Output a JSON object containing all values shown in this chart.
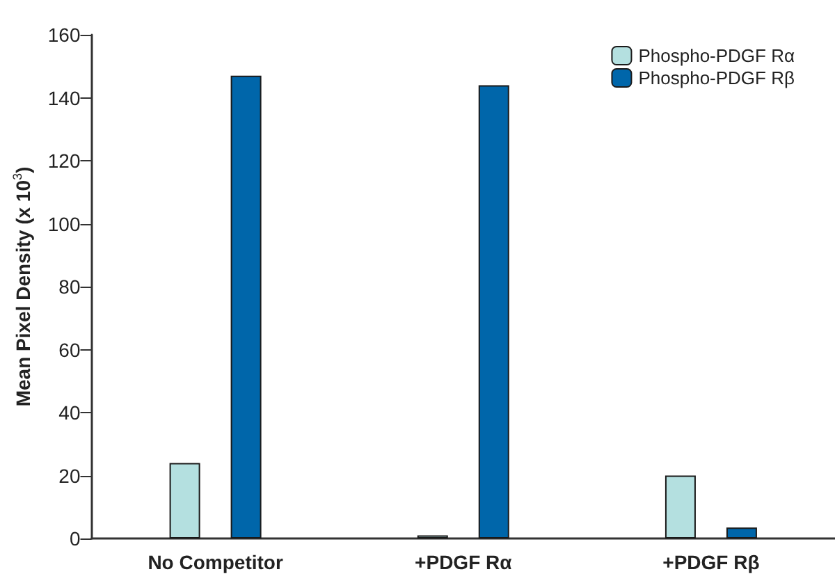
{
  "chart_data": {
    "type": "bar",
    "ylabel": "Mean Pixel Density (x 10$^{3}$)",
    "categories": [
      "No Competitor",
      "+PDGF Rα",
      "+PDGF Rβ"
    ],
    "series": [
      {
        "name": "Phospho-PDGF Rα",
        "color": "#b4e0e0",
        "values": [
          24,
          1,
          20
        ]
      },
      {
        "name": "Phospho-PDGF Rβ",
        "color": "#0066aa",
        "values": [
          147,
          144,
          3.5
        ]
      }
    ],
    "ylim": [
      0,
      160
    ],
    "yticks": [
      0,
      20,
      40,
      60,
      80,
      100,
      120,
      140,
      160
    ],
    "grid": false,
    "legend": "top right"
  }
}
